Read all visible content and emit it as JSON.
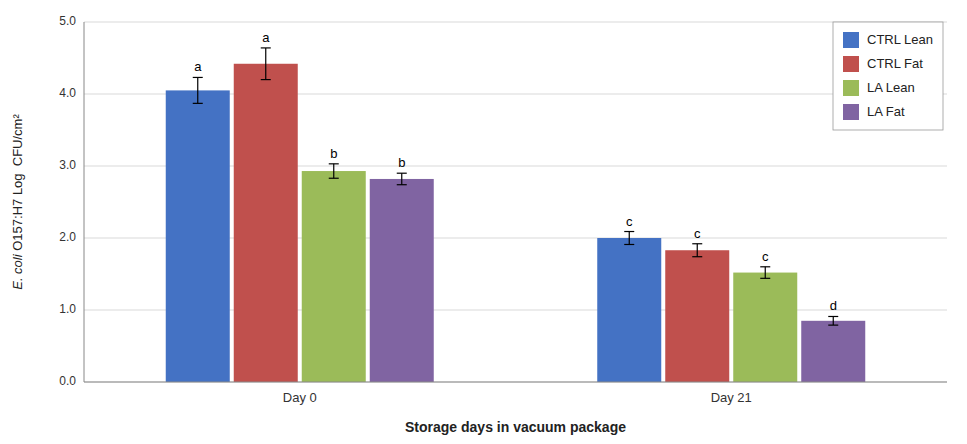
{
  "chart_data": {
    "type": "bar",
    "categories": [
      "Day 0",
      "Day 21"
    ],
    "series": [
      {
        "name": "CTRL Lean",
        "color": "#4472C4",
        "values": [
          4.05,
          2.0
        ],
        "errors": [
          0.18,
          0.09
        ],
        "letters": [
          "a",
          "c"
        ]
      },
      {
        "name": "CTRL Fat",
        "color": "#C0504D",
        "values": [
          4.42,
          1.83
        ],
        "errors": [
          0.22,
          0.09
        ],
        "letters": [
          "a",
          "c"
        ]
      },
      {
        "name": "LA Lean",
        "color": "#9BBB59",
        "values": [
          2.93,
          1.52
        ],
        "errors": [
          0.1,
          0.08
        ],
        "letters": [
          "b",
          "c"
        ]
      },
      {
        "name": "LA Fat",
        "color": "#8064A2",
        "values": [
          2.82,
          0.85
        ],
        "errors": [
          0.08,
          0.06
        ],
        "letters": [
          "b",
          "d"
        ]
      }
    ],
    "xlabel": "Storage days in vacuum package",
    "ylabel": "E. coli O157:H7 Log  CFU/cm²",
    "ylim": [
      0.0,
      5.0
    ],
    "yticks": [
      {
        "value": 0.0,
        "label": "0.0"
      },
      {
        "value": 1.0,
        "label": "1.0"
      },
      {
        "value": 2.0,
        "label": "2.0"
      },
      {
        "value": 3.0,
        "label": "3.0"
      },
      {
        "value": 4.0,
        "label": "4.0"
      },
      {
        "value": 5.0,
        "label": "5.0"
      }
    ],
    "grid": true,
    "legend": "upper right"
  }
}
